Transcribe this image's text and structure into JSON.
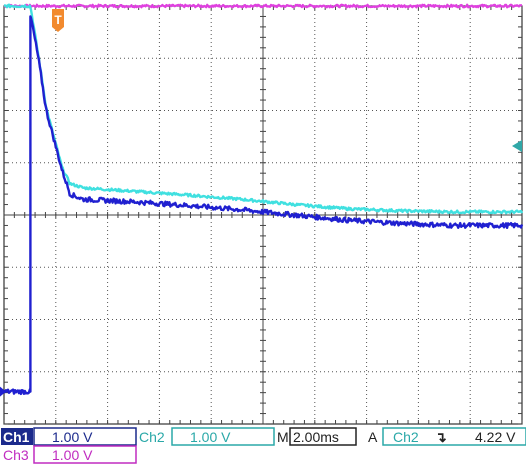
{
  "chart_data": {
    "type": "line",
    "xunit": "ms",
    "yunit": "V",
    "xlim": [
      -1.0,
      18.6
    ],
    "x_divisions": 10,
    "y_divisions": 8,
    "grid": true,
    "series": [
      {
        "name": "Ch3",
        "color": "#e040e0",
        "x": [
          -1.0,
          18.6
        ],
        "y": [
          4.0,
          4.0
        ]
      },
      {
        "name": "Ch2",
        "color": "#40e0e0",
        "x": [
          -1.0,
          0.0,
          0.3,
          0.6,
          1.2,
          1.5,
          2.0,
          4.0,
          6.0,
          8.0,
          10.0,
          12.0,
          14.0,
          16.0,
          18.0,
          18.6
        ],
        "y": [
          4.0,
          4.0,
          3.05,
          2.05,
          0.9,
          0.6,
          0.52,
          0.45,
          0.38,
          0.3,
          0.2,
          0.12,
          0.08,
          0.06,
          0.06,
          0.06
        ]
      },
      {
        "name": "Ch1",
        "color": "#2020d0",
        "x": [
          -1.0,
          0.0,
          0.0,
          0.05,
          0.3,
          0.6,
          1.2,
          1.5,
          2.0,
          4.0,
          6.0,
          8.0,
          10.0,
          12.0,
          14.0,
          16.0,
          18.0,
          18.6
        ],
        "y": [
          -3.38,
          -3.38,
          3.8,
          3.7,
          3.0,
          2.0,
          0.85,
          0.4,
          0.3,
          0.25,
          0.18,
          0.1,
          0.0,
          -0.1,
          -0.16,
          -0.2,
          -0.2,
          -0.2
        ]
      }
    ],
    "trigger_marker": "T",
    "level_marker_channel": "Ch2"
  },
  "status": {
    "ch1_name": "Ch1",
    "ch1_scale": "1.00 V",
    "ch2_name": "Ch2",
    "ch2_scale": "1.00 V",
    "timebase_prefix": "M",
    "timebase": "2.00ms",
    "trigger_mode": "A",
    "trigger_source": "Ch2",
    "trigger_slope": "↴",
    "trigger_level": "4.22 V",
    "ch3_name": "Ch3",
    "ch3_scale": "1.00 V"
  }
}
